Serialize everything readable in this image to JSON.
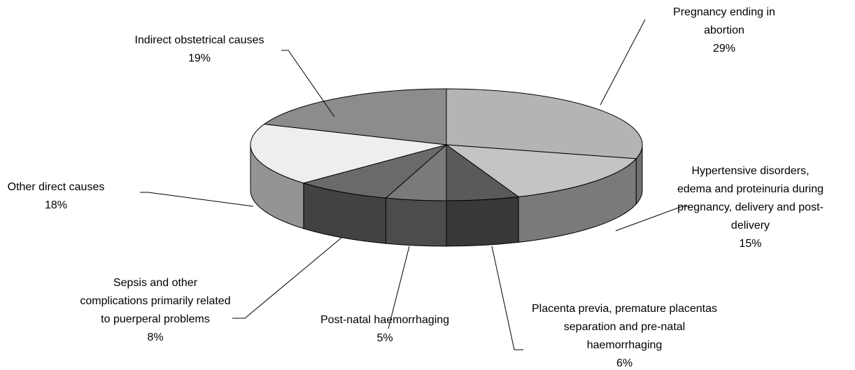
{
  "chart_data": {
    "type": "pie3d",
    "categories": [
      "Pregnancy ending in abortion",
      "Hypertensive disorders, edema and proteinuria during pregnancy, delivery and post-delivery",
      "Placenta previa, premature placentas separation and pre-natal haemorrhaging",
      "Post-natal haemorrhaging",
      "Sepsis and other complications primarily related to puerperal problems",
      "Other direct causes",
      "Indirect obstetrical causes"
    ],
    "values": [
      29,
      15,
      6,
      5,
      8,
      18,
      19
    ],
    "value_labels": [
      "29%",
      "15%",
      "6%",
      "5%",
      "8%",
      "18%",
      "19%"
    ],
    "colors": [
      "#b4b4b4",
      "#c4c4c4",
      "#5a5a5a",
      "#7a7a7a",
      "#6a6a6a",
      "#eeeeee",
      "#8c8c8c"
    ]
  }
}
